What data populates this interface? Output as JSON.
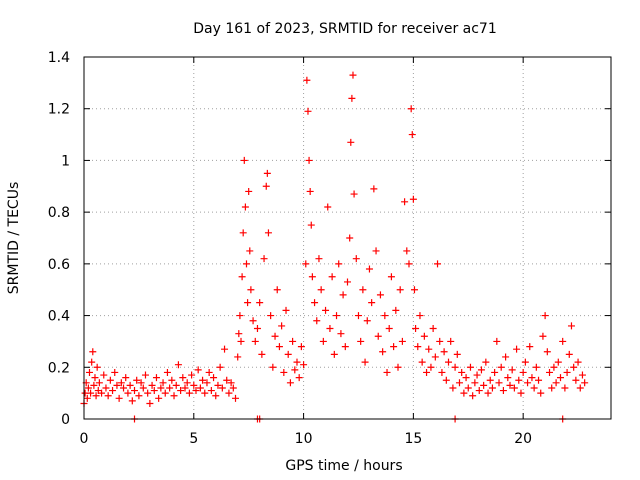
{
  "chart_data": {
    "type": "scatter",
    "title": "Day 161 of 2023, SRMTID for receiver ac71",
    "xlabel": "GPS time / hours",
    "ylabel": "SRMTID / TECUs",
    "xlim": [
      0,
      24
    ],
    "ylim": [
      0,
      1.4
    ],
    "x_ticks": [
      0,
      5,
      10,
      15,
      20
    ],
    "x_tick_labels": [
      "0",
      "5",
      "10",
      "15",
      "20"
    ],
    "y_ticks": [
      0,
      0.2,
      0.4,
      0.6,
      0.8,
      1.0,
      1.2,
      1.4
    ],
    "y_tick_labels": [
      "0",
      "0.2",
      "0.4",
      "0.6",
      "0.8",
      "1",
      "1.2",
      "1.4"
    ],
    "grid": true,
    "marker": "+",
    "series": [
      {
        "name": "SRMTID",
        "color": "#ff0000",
        "points": [
          [
            0.0,
            0.06
          ],
          [
            0.05,
            0.1
          ],
          [
            0.1,
            0.14
          ],
          [
            0.15,
            0.08
          ],
          [
            0.2,
            0.12
          ],
          [
            0.25,
            0.18
          ],
          [
            0.3,
            0.1
          ],
          [
            0.35,
            0.22
          ],
          [
            0.4,
            0.26
          ],
          [
            0.45,
            0.13
          ],
          [
            0.5,
            0.16
          ],
          [
            0.55,
            0.09
          ],
          [
            0.6,
            0.2
          ],
          [
            0.65,
            0.11
          ],
          [
            0.7,
            0.14
          ],
          [
            0.8,
            0.1
          ],
          [
            0.9,
            0.17
          ],
          [
            1.0,
            0.12
          ],
          [
            1.1,
            0.09
          ],
          [
            1.2,
            0.15
          ],
          [
            1.3,
            0.11
          ],
          [
            1.4,
            0.18
          ],
          [
            1.5,
            0.13
          ],
          [
            1.6,
            0.08
          ],
          [
            1.7,
            0.14
          ],
          [
            1.8,
            0.12
          ],
          [
            1.9,
            0.16
          ],
          [
            2.0,
            0.1
          ],
          [
            2.1,
            0.13
          ],
          [
            2.2,
            0.07
          ],
          [
            2.3,
            0.11
          ],
          [
            2.4,
            0.15
          ],
          [
            2.5,
            0.09
          ],
          [
            2.6,
            0.14
          ],
          [
            2.7,
            0.12
          ],
          [
            2.8,
            0.17
          ],
          [
            2.9,
            0.1
          ],
          [
            3.0,
            0.06
          ],
          [
            3.1,
            0.13
          ],
          [
            3.2,
            0.11
          ],
          [
            3.3,
            0.16
          ],
          [
            3.4,
            0.08
          ],
          [
            3.5,
            0.12
          ],
          [
            3.6,
            0.14
          ],
          [
            3.7,
            0.1
          ],
          [
            3.8,
            0.18
          ],
          [
            3.9,
            0.12
          ],
          [
            4.0,
            0.15
          ],
          [
            4.1,
            0.09
          ],
          [
            4.2,
            0.13
          ],
          [
            4.3,
            0.21
          ],
          [
            4.4,
            0.11
          ],
          [
            4.5,
            0.16
          ],
          [
            4.6,
            0.12
          ],
          [
            4.7,
            0.14
          ],
          [
            4.8,
            0.1
          ],
          [
            4.9,
            0.17
          ],
          [
            5.0,
            0.13
          ],
          [
            5.1,
            0.11
          ],
          [
            5.2,
            0.19
          ],
          [
            5.3,
            0.12
          ],
          [
            5.4,
            0.15
          ],
          [
            5.5,
            0.1
          ],
          [
            5.6,
            0.14
          ],
          [
            5.7,
            0.18
          ],
          [
            5.8,
            0.11
          ],
          [
            5.9,
            0.16
          ],
          [
            6.0,
            0.09
          ],
          [
            6.1,
            0.13
          ],
          [
            6.2,
            0.2
          ],
          [
            6.3,
            0.12
          ],
          [
            6.4,
            0.27
          ],
          [
            6.5,
            0.15
          ],
          [
            6.6,
            0.1
          ],
          [
            6.7,
            0.14
          ],
          [
            6.8,
            0.12
          ],
          [
            6.9,
            0.08
          ],
          [
            7.0,
            0.24
          ],
          [
            7.05,
            0.33
          ],
          [
            7.1,
            0.4
          ],
          [
            7.15,
            0.3
          ],
          [
            7.2,
            0.55
          ],
          [
            7.25,
            0.72
          ],
          [
            7.3,
            1.0
          ],
          [
            7.35,
            0.82
          ],
          [
            7.4,
            0.6
          ],
          [
            7.45,
            0.45
          ],
          [
            7.5,
            0.88
          ],
          [
            7.55,
            0.65
          ],
          [
            7.6,
            0.5
          ],
          [
            7.7,
            0.38
          ],
          [
            7.8,
            0.3
          ],
          [
            7.9,
            0.35
          ],
          [
            8.0,
            0.45
          ],
          [
            8.1,
            0.25
          ],
          [
            8.2,
            0.62
          ],
          [
            8.3,
            0.9
          ],
          [
            8.35,
            0.95
          ],
          [
            8.4,
            0.72
          ],
          [
            8.5,
            0.4
          ],
          [
            8.6,
            0.2
          ],
          [
            8.7,
            0.32
          ],
          [
            8.8,
            0.5
          ],
          [
            8.9,
            0.28
          ],
          [
            9.0,
            0.36
          ],
          [
            9.1,
            0.18
          ],
          [
            9.2,
            0.42
          ],
          [
            9.3,
            0.25
          ],
          [
            9.4,
            0.14
          ],
          [
            9.5,
            0.3
          ],
          [
            9.6,
            0.19
          ],
          [
            9.7,
            0.22
          ],
          [
            9.8,
            0.16
          ],
          [
            9.9,
            0.28
          ],
          [
            10.0,
            0.21
          ],
          [
            10.1,
            0.6
          ],
          [
            10.15,
            1.31
          ],
          [
            10.2,
            1.19
          ],
          [
            10.25,
            1.0
          ],
          [
            10.3,
            0.88
          ],
          [
            10.35,
            0.75
          ],
          [
            10.4,
            0.55
          ],
          [
            10.5,
            0.45
          ],
          [
            10.6,
            0.38
          ],
          [
            10.7,
            0.62
          ],
          [
            10.8,
            0.5
          ],
          [
            10.9,
            0.3
          ],
          [
            11.0,
            0.42
          ],
          [
            11.1,
            0.82
          ],
          [
            11.2,
            0.35
          ],
          [
            11.3,
            0.55
          ],
          [
            11.4,
            0.25
          ],
          [
            11.5,
            0.4
          ],
          [
            11.6,
            0.6
          ],
          [
            11.7,
            0.33
          ],
          [
            11.8,
            0.48
          ],
          [
            11.9,
            0.28
          ],
          [
            12.0,
            0.53
          ],
          [
            12.1,
            0.7
          ],
          [
            12.15,
            1.07
          ],
          [
            12.2,
            1.24
          ],
          [
            12.25,
            1.33
          ],
          [
            12.3,
            0.87
          ],
          [
            12.4,
            0.62
          ],
          [
            12.5,
            0.4
          ],
          [
            12.6,
            0.3
          ],
          [
            12.7,
            0.5
          ],
          [
            12.8,
            0.22
          ],
          [
            12.9,
            0.38
          ],
          [
            13.0,
            0.58
          ],
          [
            13.1,
            0.45
          ],
          [
            13.2,
            0.89
          ],
          [
            13.3,
            0.65
          ],
          [
            13.4,
            0.32
          ],
          [
            13.5,
            0.48
          ],
          [
            13.6,
            0.26
          ],
          [
            13.7,
            0.4
          ],
          [
            13.8,
            0.18
          ],
          [
            13.9,
            0.35
          ],
          [
            14.0,
            0.55
          ],
          [
            14.1,
            0.28
          ],
          [
            14.2,
            0.42
          ],
          [
            14.3,
            0.2
          ],
          [
            14.4,
            0.5
          ],
          [
            14.5,
            0.3
          ],
          [
            14.6,
            0.84
          ],
          [
            14.7,
            0.65
          ],
          [
            14.8,
            0.6
          ],
          [
            14.9,
            1.2
          ],
          [
            14.95,
            1.1
          ],
          [
            15.0,
            0.85
          ],
          [
            15.05,
            0.5
          ],
          [
            15.1,
            0.35
          ],
          [
            15.2,
            0.28
          ],
          [
            15.3,
            0.4
          ],
          [
            15.4,
            0.22
          ],
          [
            15.5,
            0.32
          ],
          [
            15.6,
            0.18
          ],
          [
            15.7,
            0.27
          ],
          [
            15.8,
            0.2
          ],
          [
            15.9,
            0.35
          ],
          [
            16.0,
            0.24
          ],
          [
            16.1,
            0.6
          ],
          [
            16.2,
            0.3
          ],
          [
            16.3,
            0.18
          ],
          [
            16.4,
            0.26
          ],
          [
            16.5,
            0.15
          ],
          [
            16.6,
            0.22
          ],
          [
            16.7,
            0.3
          ],
          [
            16.8,
            0.12
          ],
          [
            16.9,
            0.2
          ],
          [
            17.0,
            0.25
          ],
          [
            17.1,
            0.14
          ],
          [
            17.2,
            0.18
          ],
          [
            17.3,
            0.1
          ],
          [
            17.4,
            0.16
          ],
          [
            17.5,
            0.12
          ],
          [
            17.6,
            0.2
          ],
          [
            17.7,
            0.09
          ],
          [
            17.8,
            0.14
          ],
          [
            17.9,
            0.17
          ],
          [
            18.0,
            0.11
          ],
          [
            18.1,
            0.19
          ],
          [
            18.2,
            0.13
          ],
          [
            18.3,
            0.22
          ],
          [
            18.4,
            0.1
          ],
          [
            18.5,
            0.15
          ],
          [
            18.6,
            0.12
          ],
          [
            18.7,
            0.18
          ],
          [
            18.8,
            0.3
          ],
          [
            18.9,
            0.14
          ],
          [
            19.0,
            0.2
          ],
          [
            19.1,
            0.11
          ],
          [
            19.2,
            0.24
          ],
          [
            19.3,
            0.16
          ],
          [
            19.4,
            0.13
          ],
          [
            19.5,
            0.19
          ],
          [
            19.6,
            0.12
          ],
          [
            19.7,
            0.27
          ],
          [
            19.8,
            0.15
          ],
          [
            19.9,
            0.1
          ],
          [
            20.0,
            0.18
          ],
          [
            20.1,
            0.22
          ],
          [
            20.2,
            0.14
          ],
          [
            20.3,
            0.28
          ],
          [
            20.4,
            0.16
          ],
          [
            20.5,
            0.12
          ],
          [
            20.6,
            0.2
          ],
          [
            20.7,
            0.15
          ],
          [
            20.8,
            0.1
          ],
          [
            20.9,
            0.32
          ],
          [
            21.0,
            0.4
          ],
          [
            21.1,
            0.26
          ],
          [
            21.2,
            0.18
          ],
          [
            21.3,
            0.12
          ],
          [
            21.4,
            0.2
          ],
          [
            21.5,
            0.14
          ],
          [
            21.6,
            0.22
          ],
          [
            21.7,
            0.16
          ],
          [
            21.8,
            0.3
          ],
          [
            21.9,
            0.12
          ],
          [
            22.0,
            0.18
          ],
          [
            22.1,
            0.25
          ],
          [
            22.2,
            0.36
          ],
          [
            22.3,
            0.2
          ],
          [
            22.4,
            0.15
          ],
          [
            22.5,
            0.22
          ],
          [
            22.6,
            0.12
          ],
          [
            22.7,
            0.17
          ],
          [
            22.8,
            0.14
          ],
          [
            7.9,
            0.0
          ],
          [
            8.0,
            0.0
          ],
          [
            2.3,
            0.0
          ],
          [
            16.9,
            0.0
          ],
          [
            21.8,
            0.0
          ]
        ]
      }
    ]
  }
}
